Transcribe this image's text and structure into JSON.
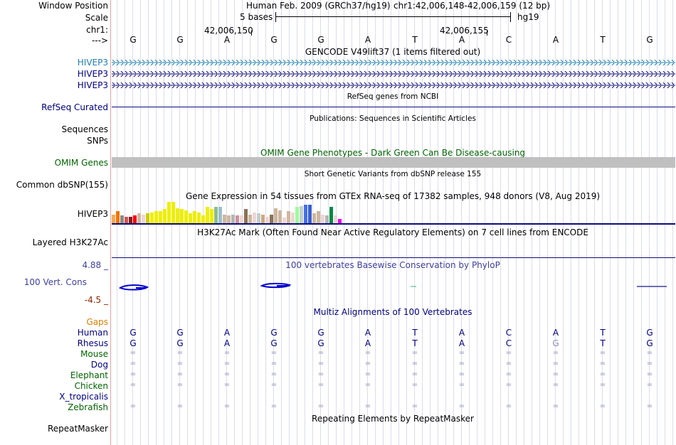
{
  "header": {
    "window_position_label": "Window Position",
    "assembly_text": "Human Feb. 2009 (GRCh37/hg19)",
    "position_text": "chr1:42,006,148-42,006,159 (12 bp)",
    "scale_label": "Scale",
    "scale_bar_text": "5 bases",
    "scale_db": "hg19",
    "chrom_label": "chr1:",
    "coord_left": "42,006,150",
    "coord_right": "42,006,155",
    "strand_label": "--->"
  },
  "bases": [
    "G",
    "G",
    "A",
    "G",
    "G",
    "A",
    "T",
    "A",
    "C",
    "A",
    "T",
    "G"
  ],
  "tracks": {
    "gencode": {
      "title": "GENCODE V49lift37 (1 items filtered out)",
      "items": [
        "HIVEP3",
        "HIVEP3",
        "HIVEP3"
      ],
      "colors": [
        "#1d7fb5",
        "#0c0c78",
        "#0c0c78"
      ]
    },
    "refseq": {
      "title": "RefSeq genes from NCBI",
      "label": "RefSeq Curated"
    },
    "publications": {
      "title": "Publications: Sequences in Scientific Articles",
      "labels": [
        "Sequences",
        "SNPs"
      ]
    },
    "omim": {
      "title": "OMIM Gene Phenotypes - Dark Green Can Be Disease-causing",
      "label": "OMIM Genes"
    },
    "dbsnp": {
      "title": "Short Genetic Variants from dbSNP release 155",
      "label": "Common dbSNP(155)"
    },
    "gtex": {
      "title": "Gene Expression in 54 tissues from GTEx RNA-seq of 17382 samples, 948 donors (V8, Aug 2019)",
      "label": "HIVEP3",
      "bars": [
        {
          "v": 0.4,
          "c": "#ffa54f"
        },
        {
          "v": 0.55,
          "c": "#ee7600"
        },
        {
          "v": 0.35,
          "c": "#8b8b83"
        },
        {
          "v": 0.3,
          "c": "#cd5555"
        },
        {
          "v": 0.3,
          "c": "#8b1a1a"
        },
        {
          "v": 0.35,
          "c": "#ff0000"
        },
        {
          "v": 0.45,
          "c": "#cdb79e"
        },
        {
          "v": 0.4,
          "c": "#eed5d2"
        },
        {
          "v": 0.45,
          "c": "#cdcd00"
        },
        {
          "v": 0.5,
          "c": "#eeee00"
        },
        {
          "v": 0.55,
          "c": "#eeee00"
        },
        {
          "v": 0.55,
          "c": "#eeee00"
        },
        {
          "v": 0.65,
          "c": "#eeee00"
        },
        {
          "v": 1.0,
          "c": "#eeee00"
        },
        {
          "v": 1.0,
          "c": "#eeee00"
        },
        {
          "v": 0.7,
          "c": "#eeee00"
        },
        {
          "v": 0.65,
          "c": "#eeee00"
        },
        {
          "v": 0.6,
          "c": "#eeee00"
        },
        {
          "v": 0.45,
          "c": "#eeee00"
        },
        {
          "v": 0.55,
          "c": "#eeee00"
        },
        {
          "v": 0.5,
          "c": "#eeee00"
        },
        {
          "v": 0.35,
          "c": "#eeee00"
        },
        {
          "v": 0.75,
          "c": "#eeee00"
        },
        {
          "v": 0.65,
          "c": "#eeee00"
        },
        {
          "v": 0.75,
          "c": "#8fbc8f"
        },
        {
          "v": 0.75,
          "c": "#9ac0cd"
        },
        {
          "v": 0.4,
          "c": "#cdb79e"
        },
        {
          "v": 0.35,
          "c": "#cdb79e"
        },
        {
          "v": 0.4,
          "c": "#b5b5b5"
        },
        {
          "v": 0.35,
          "c": "#cd919e"
        },
        {
          "v": 0.35,
          "c": "#eed5d2"
        },
        {
          "v": 0.65,
          "c": "#8b7355"
        },
        {
          "v": 0.4,
          "c": "#cdb79e"
        },
        {
          "v": 0.5,
          "c": "#eed5d2"
        },
        {
          "v": 0.45,
          "c": "#c1cdcd"
        },
        {
          "v": 0.4,
          "c": "#cdaa7d"
        },
        {
          "v": 0.3,
          "c": "#eed5d2"
        },
        {
          "v": 0.4,
          "c": "#8b7355"
        },
        {
          "v": 0.7,
          "c": "#cdb79e"
        },
        {
          "v": 0.6,
          "c": "#cdb79e"
        },
        {
          "v": 0.25,
          "c": "#eed5d2"
        },
        {
          "v": 0.55,
          "c": "#cdb79e"
        },
        {
          "v": 0.5,
          "c": "#eed5d2"
        },
        {
          "v": 0.75,
          "c": "#9aff9a"
        },
        {
          "v": 0.8,
          "c": "#c1cdcd"
        },
        {
          "v": 0.85,
          "c": "#436eee"
        },
        {
          "v": 0.85,
          "c": "#3a5fcd"
        },
        {
          "v": 0.45,
          "c": "#cdb79e"
        },
        {
          "v": 0.55,
          "c": "#cdb79e"
        },
        {
          "v": 0.4,
          "c": "#eed5d2"
        },
        {
          "v": 0.35,
          "c": "#b5b5b5"
        },
        {
          "v": 0.75,
          "c": "#008b45"
        },
        {
          "v": 0.35,
          "c": "#eed5d2"
        },
        {
          "v": 0.2,
          "c": "#ee00ee"
        }
      ]
    },
    "h3k27ac": {
      "title": "H3K27Ac Mark (Often Found Near Active Regulatory Elements) on 7 cell lines from ENCODE",
      "label": "Layered H3K27Ac"
    },
    "phylop": {
      "title": "100 vertebrates Basewise Conservation by PhyloP",
      "label": "100 Vert. Cons",
      "max_label": "4.88 _",
      "min_label": "-4.5 _"
    },
    "multiz": {
      "title": "Multiz Alignments of 100 Vertebrates",
      "gaps_label": "Gaps",
      "species": [
        {
          "name": "Human",
          "color": "#000080",
          "seq": [
            "G",
            "G",
            "A",
            "G",
            "G",
            "A",
            "T",
            "A",
            "C",
            "A",
            "T",
            "G"
          ]
        },
        {
          "name": "Rhesus",
          "color": "#000080",
          "seq": [
            "G",
            "G",
            "A",
            "G",
            "G",
            "A",
            "T",
            "A",
            "C",
            "G",
            "T",
            "G"
          ]
        },
        {
          "name": "Mouse",
          "color": "#006400",
          "seq": [
            "=",
            "=",
            "=",
            "=",
            "=",
            "=",
            "=",
            "=",
            "=",
            "=",
            "=",
            "="
          ]
        },
        {
          "name": "Dog",
          "color": "#000080",
          "seq": [
            "=",
            "=",
            "=",
            "=",
            "=",
            "=",
            "=",
            "=",
            "=",
            "=",
            "=",
            "="
          ]
        },
        {
          "name": "Elephant",
          "color": "#006400",
          "seq": [
            "=",
            "=",
            "=",
            "=",
            "=",
            "=",
            "=",
            "=",
            "=",
            "=",
            "=",
            "="
          ]
        },
        {
          "name": "Chicken",
          "color": "#006400",
          "seq": [
            "=",
            "=",
            "=",
            "=",
            "=",
            "=",
            "=",
            "=",
            "=",
            "=",
            "=",
            "="
          ]
        },
        {
          "name": "X_tropicalis",
          "color": "#000080",
          "seq": [
            "",
            "",
            "",
            "",
            "",
            "",
            "",
            "",
            "",
            "",
            "",
            ""
          ]
        },
        {
          "name": "Zebrafish",
          "color": "#006400",
          "seq": [
            "=",
            "=",
            "=",
            "=",
            "=",
            "=",
            "=",
            "=",
            "=",
            "=",
            "=",
            "="
          ]
        }
      ]
    },
    "repeatmasker": {
      "title": "Repeating Elements by RepeatMasker",
      "label": "RepeatMasker"
    }
  },
  "colors": {
    "track_blue": "#0c0c78",
    "omim_green": "#006400",
    "phylop_blue": "#3f3f9f",
    "phylop_red": "#8b2500",
    "gaps_orange": "#e07b00"
  }
}
